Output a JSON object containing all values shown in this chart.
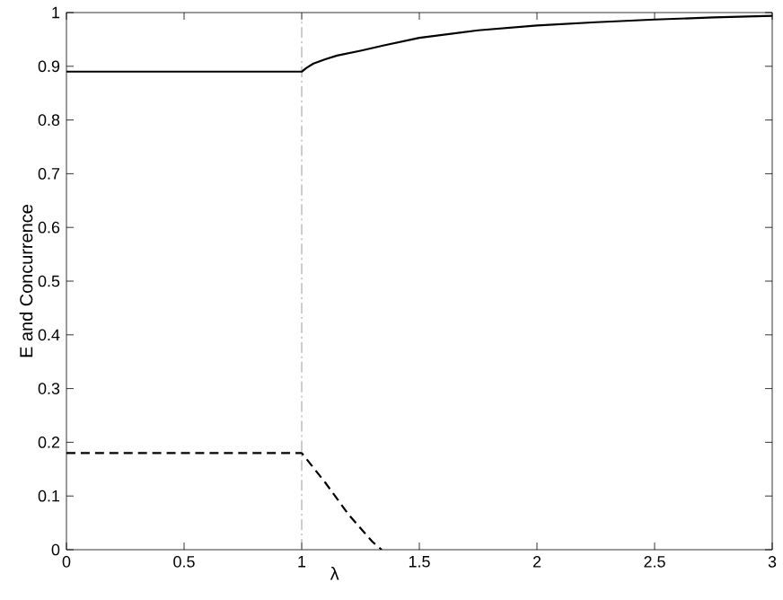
{
  "chart_data": {
    "type": "line",
    "xlabel": "λ",
    "ylabel": "E and Concurrence",
    "xlim": [
      0,
      3
    ],
    "ylim": [
      0,
      1
    ],
    "xticks": [
      0,
      0.5,
      1,
      1.5,
      2,
      2.5,
      3
    ],
    "yticks": [
      0,
      0.1,
      0.2,
      0.3,
      0.4,
      0.5,
      0.6,
      0.7,
      0.8,
      0.9,
      1
    ],
    "marker": "none",
    "series": [
      {
        "color": "#000000",
        "line_style": "solid",
        "x": [
          0,
          1,
          1.02,
          1.05,
          1.1,
          1.15,
          1.25,
          1.35,
          1.5,
          1.75,
          2,
          2.25,
          2.5,
          2.75,
          3
        ],
        "values": [
          0.89,
          0.89,
          0.897,
          0.905,
          0.913,
          0.92,
          0.929,
          0.939,
          0.953,
          0.967,
          0.976,
          0.982,
          0.987,
          0.991,
          0.994
        ]
      },
      {
        "color": "#000000",
        "line_style": "dashed",
        "x": [
          0,
          1,
          1.1,
          1.2,
          1.3,
          1.34
        ],
        "values": [
          0.18,
          0.18,
          0.125,
          0.065,
          0.015,
          0
        ]
      }
    ],
    "ref_lines": [
      {
        "axis": "x",
        "value": 1,
        "color": "#808080",
        "line_style": "dashdot"
      }
    ]
  }
}
